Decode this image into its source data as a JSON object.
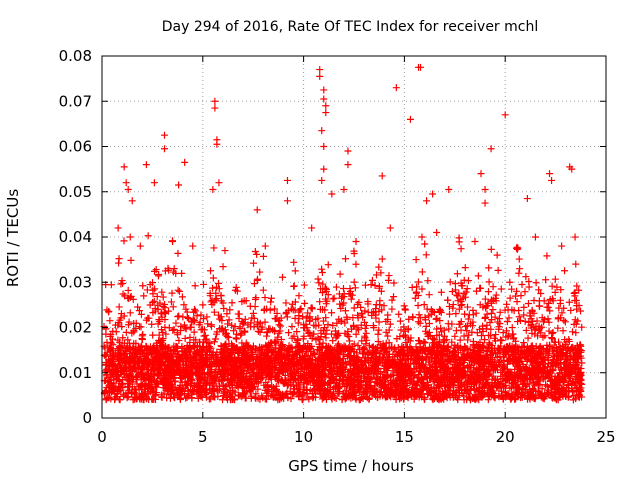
{
  "chart_data": {
    "type": "scatter",
    "title": "Day 294 of 2016, Rate Of TEC Index for receiver mchl",
    "xlabel": "GPS time / hours",
    "ylabel": "ROTI / TECUs",
    "xlim": [
      0,
      25
    ],
    "ylim": [
      0,
      0.08
    ],
    "xticks": [
      0,
      5,
      10,
      15,
      20,
      25
    ],
    "xtick_labels": [
      "0",
      "5",
      "10",
      "15",
      "20",
      "25"
    ],
    "yticks": [
      0,
      0.01,
      0.02,
      0.03,
      0.04,
      0.05,
      0.06,
      0.07,
      0.08
    ],
    "ytick_labels": [
      "0",
      "0.01",
      "0.02",
      "0.03",
      "0.04",
      "0.05",
      "0.06",
      "0.07",
      "0.08"
    ],
    "grid": true,
    "marker": "+",
    "color": "#ff0000",
    "series": [
      {
        "name": "ROTI",
        "description_of_distribution": "dense cloud 0.003-0.04 TECU over 0-23.8 h",
        "points": [
          [
            1.1,
            0.0555
          ],
          [
            1.2,
            0.052
          ],
          [
            1.3,
            0.0505
          ],
          [
            1.5,
            0.048
          ],
          [
            2.2,
            0.056
          ],
          [
            2.6,
            0.052
          ],
          [
            3.1,
            0.0625
          ],
          [
            3.1,
            0.0595
          ],
          [
            3.8,
            0.0515
          ],
          [
            4.1,
            0.0565
          ],
          [
            5.5,
            0.0505
          ],
          [
            5.6,
            0.07
          ],
          [
            5.6,
            0.0685
          ],
          [
            5.7,
            0.0615
          ],
          [
            5.7,
            0.0605
          ],
          [
            5.8,
            0.052
          ],
          [
            7.7,
            0.046
          ],
          [
            9.2,
            0.0525
          ],
          [
            9.2,
            0.048
          ],
          [
            10.8,
            0.077
          ],
          [
            10.8,
            0.0755
          ],
          [
            10.9,
            0.0635
          ],
          [
            11.0,
            0.0725
          ],
          [
            11.0,
            0.0705
          ],
          [
            11.1,
            0.069
          ],
          [
            11.1,
            0.0675
          ],
          [
            11.0,
            0.06
          ],
          [
            11.0,
            0.055
          ],
          [
            10.9,
            0.0525
          ],
          [
            11.4,
            0.0495
          ],
          [
            12.2,
            0.059
          ],
          [
            12.2,
            0.056
          ],
          [
            12.0,
            0.0505
          ],
          [
            13.9,
            0.0535
          ],
          [
            14.6,
            0.073
          ],
          [
            15.3,
            0.066
          ],
          [
            15.7,
            0.0775
          ],
          [
            15.8,
            0.0775
          ],
          [
            16.1,
            0.048
          ],
          [
            16.4,
            0.0495
          ],
          [
            17.2,
            0.0505
          ],
          [
            18.8,
            0.054
          ],
          [
            19.0,
            0.0505
          ],
          [
            19.0,
            0.0475
          ],
          [
            19.3,
            0.0595
          ],
          [
            20.0,
            0.067
          ],
          [
            21.1,
            0.0485
          ],
          [
            22.2,
            0.054
          ],
          [
            22.3,
            0.0525
          ],
          [
            23.2,
            0.0555
          ],
          [
            23.3,
            0.055
          ],
          [
            0.8,
            0.042
          ],
          [
            1.4,
            0.04
          ],
          [
            1.9,
            0.038
          ],
          [
            3.5,
            0.039
          ],
          [
            4.5,
            0.038
          ],
          [
            6.1,
            0.037
          ],
          [
            8.1,
            0.038
          ],
          [
            10.4,
            0.042
          ],
          [
            12.6,
            0.039
          ],
          [
            14.3,
            0.042
          ],
          [
            16.6,
            0.041
          ],
          [
            18.5,
            0.039
          ],
          [
            19.6,
            0.036
          ],
          [
            21.5,
            0.04
          ],
          [
            22.8,
            0.038
          ],
          [
            23.5,
            0.034
          ]
        ]
      }
    ]
  }
}
